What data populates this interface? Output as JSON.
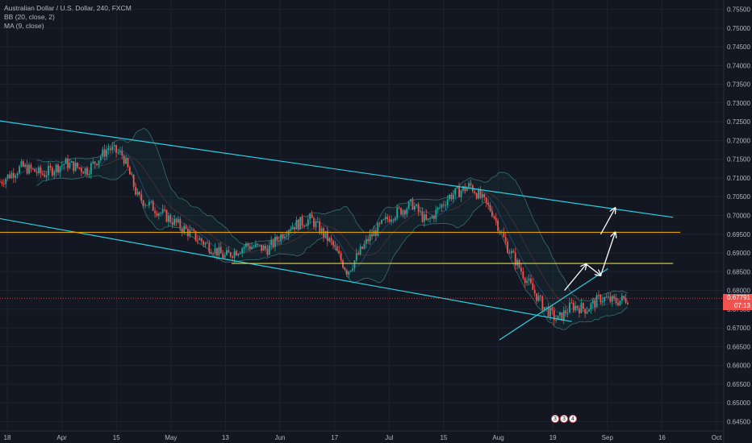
{
  "legend": {
    "title": "Australian Dollar / U.S. Dollar, 240, FXCM",
    "bb": "BB (20, close, 2)",
    "ma": "MA (9, close)"
  },
  "colors": {
    "background": "#131722",
    "channel": "#2bd0e0",
    "level_orange": "#e0a000",
    "level_yellow": "#d8d840",
    "candle_up": "#26a69a",
    "candle_down": "#ef5350",
    "price_tag": "#ef5350",
    "arrows": "#ffffff"
  },
  "price_tags": {
    "current": "0.67791",
    "countdown": "07:13"
  },
  "event_icons": [
    "3",
    "3",
    "4"
  ],
  "chart_data": {
    "type": "candlestick",
    "y_axis_ticks": [
      "0.75500",
      "0.75000",
      "0.74500",
      "0.74000",
      "0.73500",
      "0.73000",
      "0.72500",
      "0.72000",
      "0.71500",
      "0.71000",
      "0.70500",
      "0.70000",
      "0.69500",
      "0.69000",
      "0.68500",
      "0.68000",
      "0.67500",
      "0.67000",
      "0.66500",
      "0.66000",
      "0.65500",
      "0.65000",
      "0.64500"
    ],
    "x_axis_ticks": [
      "18",
      "Apr",
      "15",
      "May",
      "13",
      "Jun",
      "17",
      "Jul",
      "15",
      "Aug",
      "19",
      "Sep",
      "16",
      "Oct"
    ],
    "ylim": [
      0.6425,
      0.7575
    ],
    "price_path": [
      [
        0.0,
        0.709
      ],
      [
        0.03,
        0.713
      ],
      [
        0.06,
        0.711
      ],
      [
        0.09,
        0.714
      ],
      [
        0.12,
        0.712
      ],
      [
        0.15,
        0.718
      ],
      [
        0.17,
        0.716
      ],
      [
        0.19,
        0.705
      ],
      [
        0.22,
        0.701
      ],
      [
        0.25,
        0.697
      ],
      [
        0.28,
        0.693
      ],
      [
        0.31,
        0.689
      ],
      [
        0.34,
        0.692
      ],
      [
        0.37,
        0.691
      ],
      [
        0.4,
        0.697
      ],
      [
        0.43,
        0.699
      ],
      [
        0.46,
        0.692
      ],
      [
        0.48,
        0.685
      ],
      [
        0.51,
        0.694
      ],
      [
        0.54,
        0.7
      ],
      [
        0.57,
        0.703
      ],
      [
        0.59,
        0.698
      ],
      [
        0.62,
        0.705
      ],
      [
        0.65,
        0.708
      ],
      [
        0.68,
        0.701
      ],
      [
        0.7,
        0.692
      ],
      [
        0.73,
        0.682
      ],
      [
        0.75,
        0.676
      ],
      [
        0.77,
        0.672
      ],
      [
        0.79,
        0.676
      ],
      [
        0.81,
        0.675
      ],
      [
        0.83,
        0.678
      ],
      [
        0.85,
        0.677
      ],
      [
        0.87,
        0.678
      ]
    ],
    "channel_upper": [
      [
        -0.01,
        0.7255
      ],
      [
        0.93,
        0.6995
      ]
    ],
    "channel_lower": [
      [
        -0.01,
        0.6995
      ],
      [
        0.79,
        0.6717
      ]
    ],
    "support_line": [
      [
        0.69,
        0.6668
      ],
      [
        0.84,
        0.6858
      ]
    ],
    "level_orange": 0.6955,
    "level_yellow": 0.6872,
    "level_yellow_range": [
      0.32,
      0.93
    ],
    "level_orange_range": [
      0.0,
      0.94
    ],
    "current_price": 0.67791,
    "projection_arrows": [
      [
        [
          0.78,
          0.68
        ],
        [
          0.81,
          0.687
        ]
      ],
      [
        [
          0.81,
          0.687
        ],
        [
          0.83,
          0.684
        ]
      ],
      [
        [
          0.83,
          0.684
        ],
        [
          0.85,
          0.6955
        ]
      ],
      [
        [
          0.83,
          0.695
        ],
        [
          0.85,
          0.702
        ]
      ]
    ]
  }
}
